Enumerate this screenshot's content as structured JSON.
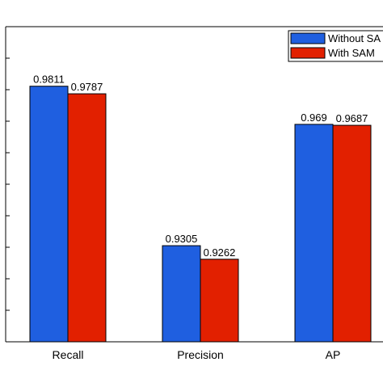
{
  "chart_data": {
    "type": "bar",
    "categories": [
      "Recall",
      "Precision",
      "AP"
    ],
    "series": [
      {
        "name": "Without SAM",
        "values": [
          0.9811,
          0.9305,
          0.969
        ],
        "labels": [
          "0.9811",
          "0.9305",
          "0.969"
        ],
        "color": "#1f5fe0"
      },
      {
        "name": "With SAM",
        "values": [
          0.9787,
          0.9262,
          0.9687
        ],
        "labels": [
          "0.9787",
          "0.9262",
          "0.9687"
        ],
        "color": "#e22000"
      }
    ],
    "legend_labels": [
      "Without SA",
      "With SAM"
    ],
    "ylim": [
      0.9,
      1.0
    ],
    "y_tick_step": 0.01,
    "grid": false,
    "legend_position": "top-right"
  }
}
